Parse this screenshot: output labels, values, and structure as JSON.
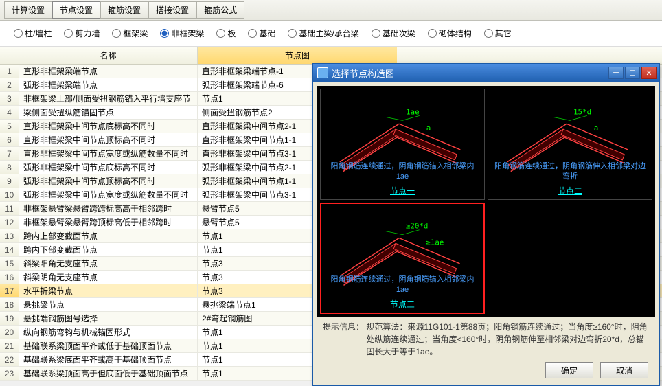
{
  "tabs": [
    "计算设置",
    "节点设置",
    "箍筋设置",
    "搭接设置",
    "箍筋公式"
  ],
  "active_tab": "节点设置",
  "radios": [
    "柱/墙柱",
    "剪力墙",
    "框架梁",
    "非框架梁",
    "板",
    "基础",
    "基础主梁/承台梁",
    "基础次梁",
    "砌体结构",
    "其它"
  ],
  "active_radio": "非框架梁",
  "columns": {
    "name": "名称",
    "diagram": "节点图"
  },
  "rows": [
    {
      "i": 1,
      "name": "直形非框架梁端节点",
      "diagram": "直形非框架梁端节点-1"
    },
    {
      "i": 2,
      "name": "弧形非框架梁端节点",
      "diagram": "弧形非框架梁端节点-6"
    },
    {
      "i": 3,
      "name": "非框架梁上部/侧面受扭钢筋锚入平行墙支座节",
      "diagram": "节点1"
    },
    {
      "i": 4,
      "name": "梁侧面受扭纵筋锚固节点",
      "diagram": "侧面受扭钢筋节点2"
    },
    {
      "i": 5,
      "name": "直形非框架梁中间节点底标高不同时",
      "diagram": "直形非框架梁中间节点2-1"
    },
    {
      "i": 6,
      "name": "直形非框架梁中间节点顶标高不同时",
      "diagram": "直形非框架梁中间节点1-1"
    },
    {
      "i": 7,
      "name": "直形非框架梁中间节点宽度或纵筋数量不同时",
      "diagram": "直形非框架梁中间节点3-1"
    },
    {
      "i": 8,
      "name": "弧形非框架梁中间节点底标高不同时",
      "diagram": "弧形非框架梁中间节点2-1"
    },
    {
      "i": 9,
      "name": "弧形非框架梁中间节点顶标高不同时",
      "diagram": "弧形非框架梁中间节点1-1"
    },
    {
      "i": 10,
      "name": "弧形非框架梁中间节点宽度或纵筋数量不同时",
      "diagram": "弧形非框架梁中间节点3-1"
    },
    {
      "i": 11,
      "name": "非框架悬臂梁悬臂跨跨标高高于相邻跨时",
      "diagram": "悬臂节点5"
    },
    {
      "i": 12,
      "name": "非框架悬臂梁悬臂跨顶标高低于相邻跨时",
      "diagram": "悬臂节点5"
    },
    {
      "i": 13,
      "name": "跨内上部变截面节点",
      "diagram": "节点1"
    },
    {
      "i": 14,
      "name": "跨内下部变截面节点",
      "diagram": "节点1"
    },
    {
      "i": 15,
      "name": "斜梁阳角无支座节点",
      "diagram": "节点3"
    },
    {
      "i": 16,
      "name": "斜梁阴角无支座节点",
      "diagram": "节点3"
    },
    {
      "i": 17,
      "name": "水平折梁节点",
      "diagram": "节点3"
    },
    {
      "i": 18,
      "name": "悬挑梁节点",
      "diagram": "悬挑梁端节点1"
    },
    {
      "i": 19,
      "name": "悬挑端钢筋图号选择",
      "diagram": "2#弯起钢筋图"
    },
    {
      "i": 20,
      "name": "纵向钢筋弯钩与机械锚固形式",
      "diagram": "节点1"
    },
    {
      "i": 21,
      "name": "基础联系梁顶面平齐或低于基础顶面节点",
      "diagram": "节点1"
    },
    {
      "i": 22,
      "name": "基础联系梁底面平齐或高于基础顶面节点",
      "diagram": "节点1"
    },
    {
      "i": 23,
      "name": "基础联系梁顶面高于但底面低于基础顶面节点",
      "diagram": "节点1"
    }
  ],
  "selected_row": 17,
  "dialog": {
    "title": "选择节点构造图",
    "cells": [
      {
        "name": "节点一",
        "desc": "阳角钢筋连续通过，阴角钢筋锚入相邻梁内1ae",
        "dim": "1ae",
        "dim2": "a"
      },
      {
        "name": "节点二",
        "desc": "阳角钢筋连续通过，阴角钢筋伸入相邻梁对边弯折",
        "dim": "15*d",
        "dim2": "a"
      },
      {
        "name": "节点三",
        "desc": "阳角钢筋连续通过，阴角钢筋锚入相邻梁内1ae",
        "dim": "≥20*d",
        "dim2": "≥1ae"
      }
    ],
    "selected_cell": 2,
    "hint_label": "提示信息：",
    "hint_body": "规范算法：来源11G101-1第88页；阳角钢筋连续通过；当角度≥160°时，阴角处纵筋连续通过；当角度<160°时，阴角钢筋伸至相邻梁对边弯折20*d，总锚固长大于等于1ae。",
    "ok": "确定",
    "cancel": "取消"
  }
}
